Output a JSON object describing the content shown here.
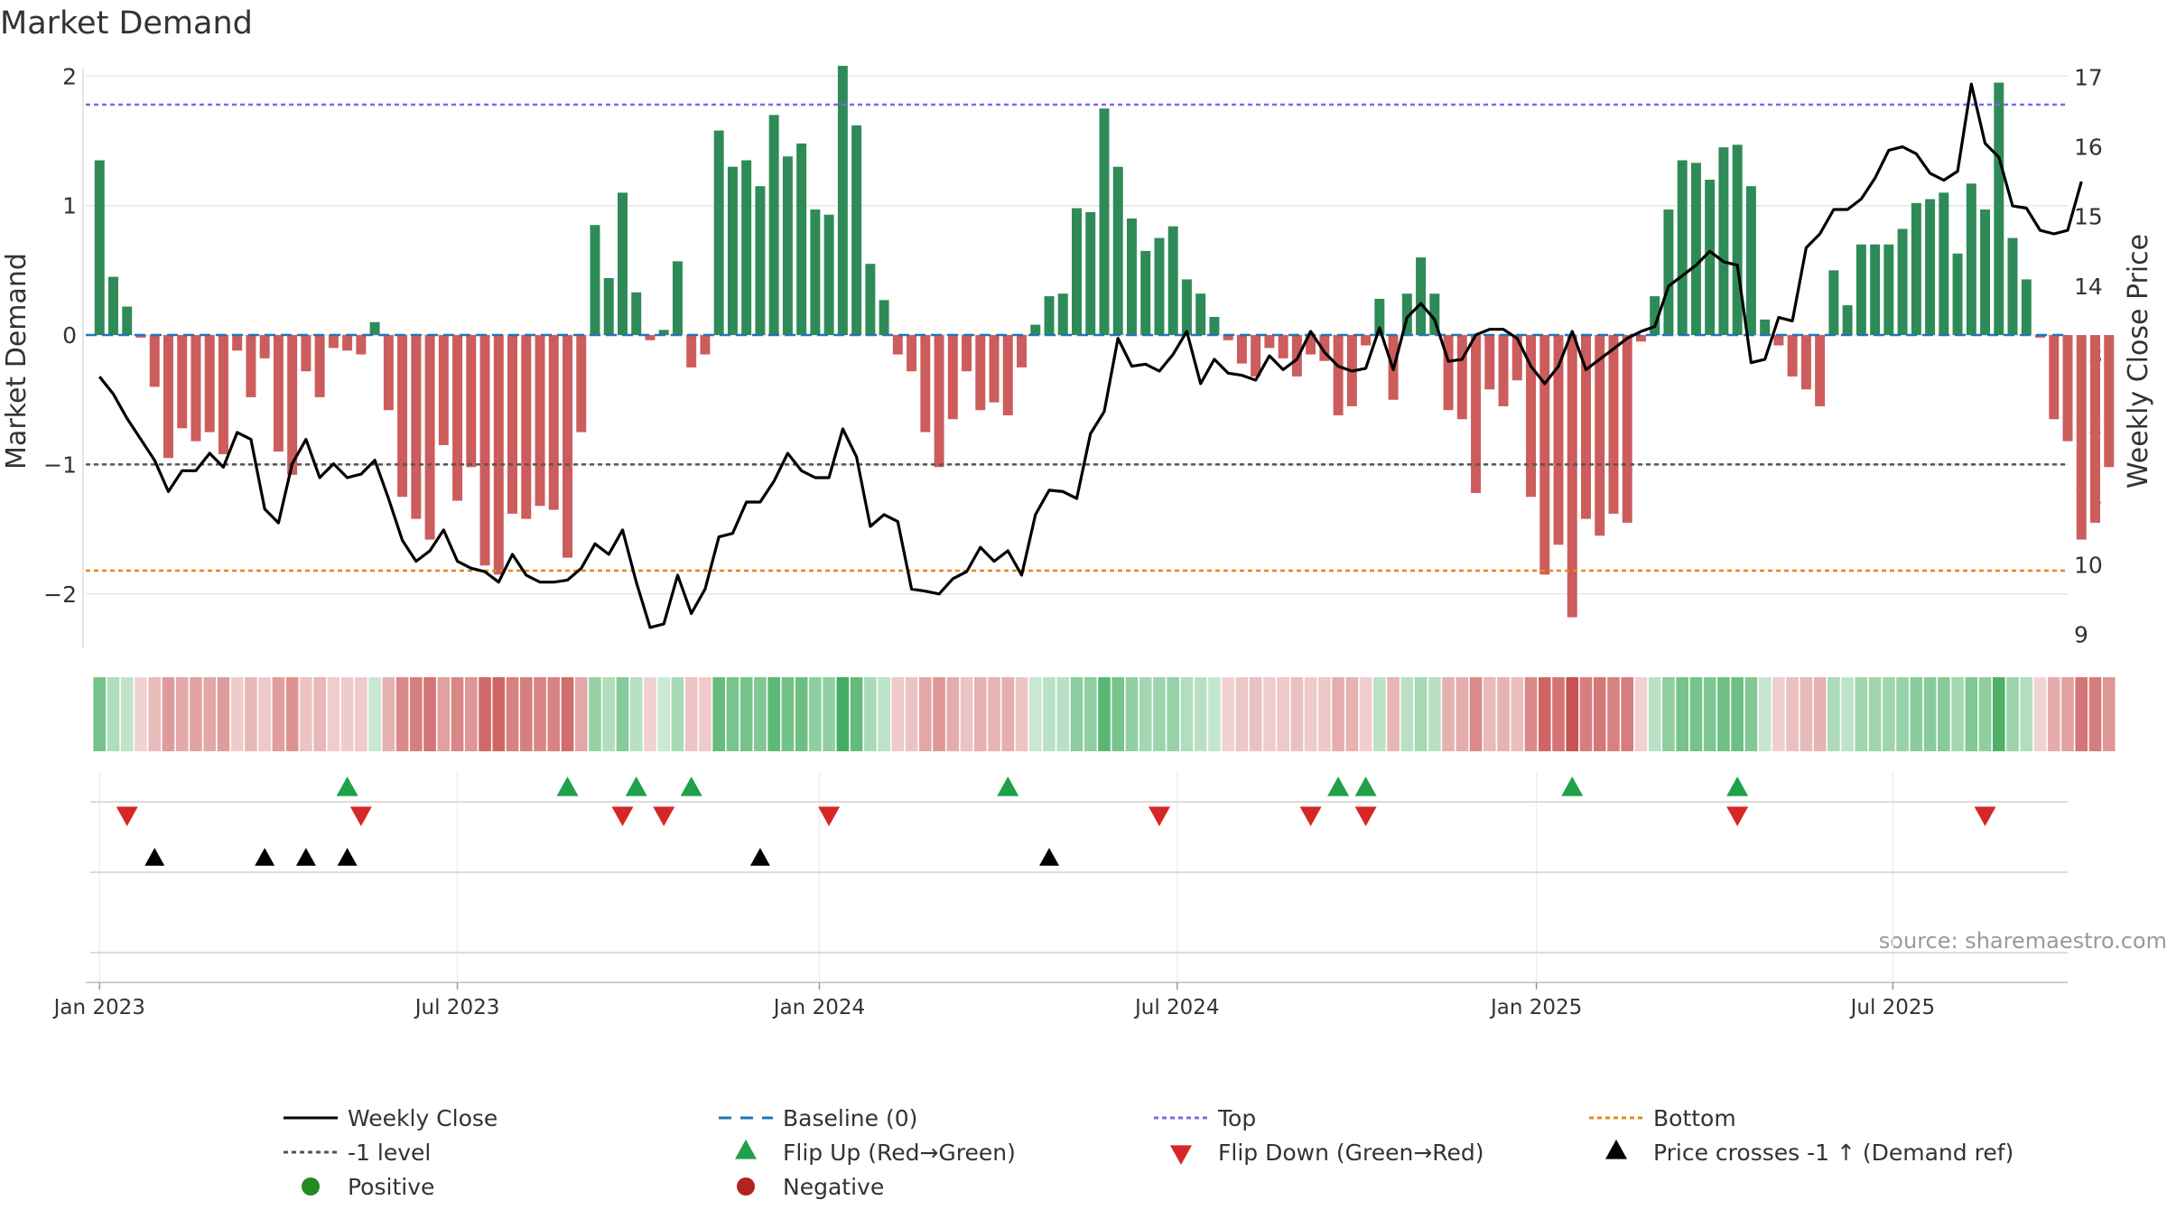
{
  "title": "Market Demand",
  "source": "source: sharemaestro.com",
  "colors": {
    "positive": "#2e8b57",
    "negative": "#cd5c5c",
    "close": "#000000",
    "baseline": "#1f77b4",
    "top": "#7b68ee",
    "bottom": "#e08a1e",
    "minus_one": "#555555",
    "flip_up": "#21a04a",
    "flip_down": "#d62728",
    "cross": "#000000",
    "grid": "#e6e6e6"
  },
  "chart_data": {
    "type": "bar",
    "title": "Market Demand",
    "ylabel": "Market Demand",
    "y2label": "Weekly Close Price",
    "ylim": [
      -2.42,
      2.1
    ],
    "y2lim": [
      8.8,
      17.2
    ],
    "yticks": [
      {
        "v": 2,
        "label": "2"
      },
      {
        "v": 1,
        "label": "1"
      },
      {
        "v": 0,
        "label": "0"
      },
      {
        "v": -1,
        "label": "−1"
      },
      {
        "v": -2,
        "label": "−2"
      }
    ],
    "y2ticks": [
      9,
      10,
      11,
      12,
      13,
      14,
      15,
      16,
      17
    ],
    "top_level": 1.78,
    "bottom_level": -1.82,
    "minus_one_level": -1,
    "x_start_week": -1,
    "x_end_week": 143,
    "xticks": [
      {
        "week": 0,
        "label": "Jan 2023"
      },
      {
        "week": 26,
        "label": "Jul 2023"
      },
      {
        "week": 52.3,
        "label": "Jan 2024"
      },
      {
        "week": 78.3,
        "label": "Jul 2024"
      },
      {
        "week": 104.4,
        "label": "Jan 2025"
      },
      {
        "week": 130.3,
        "label": "Jul 2025"
      }
    ],
    "demand": [
      1.35,
      0.45,
      0.22,
      -0.02,
      -0.4,
      -0.95,
      -0.72,
      -0.82,
      -0.75,
      -0.92,
      -0.12,
      -0.48,
      -0.18,
      -0.9,
      -1.08,
      -0.28,
      -0.48,
      -0.1,
      -0.12,
      -0.15,
      0.1,
      -0.58,
      -1.25,
      -1.42,
      -1.58,
      -0.85,
      -1.28,
      -1.02,
      -1.78,
      -1.85,
      -1.38,
      -1.42,
      -1.32,
      -1.35,
      -1.72,
      -0.75,
      0.85,
      0.44,
      1.1,
      0.33,
      -0.04,
      0.04,
      0.57,
      -0.25,
      -0.15,
      1.58,
      1.3,
      1.35,
      1.15,
      1.7,
      1.38,
      1.48,
      0.97,
      0.93,
      2.08,
      1.62,
      0.55,
      0.27,
      -0.15,
      -0.28,
      -0.75,
      -1.02,
      -0.65,
      -0.28,
      -0.58,
      -0.52,
      -0.62,
      -0.25,
      0.08,
      0.3,
      0.32,
      0.98,
      0.95,
      1.75,
      1.3,
      0.9,
      0.65,
      0.75,
      0.84,
      0.43,
      0.32,
      0.14,
      -0.04,
      -0.22,
      -0.32,
      -0.1,
      -0.18,
      -0.32,
      -0.15,
      -0.2,
      -0.62,
      -0.55,
      -0.08,
      0.28,
      -0.5,
      0.32,
      0.6,
      0.32,
      -0.58,
      -0.65,
      -1.22,
      -0.42,
      -0.55,
      -0.35,
      -1.25,
      -1.85,
      -1.62,
      -2.18,
      -1.42,
      -1.55,
      -1.38,
      -1.45,
      -0.05,
      0.3,
      0.97,
      1.35,
      1.33,
      1.2,
      1.45,
      1.47,
      1.15,
      0.12,
      -0.08,
      -0.32,
      -0.42,
      -0.55,
      0.5,
      0.23,
      0.7,
      0.7,
      0.7,
      0.82,
      1.02,
      1.05,
      1.1,
      0.63,
      1.17,
      0.97,
      1.95,
      0.75,
      0.43,
      -0.02,
      -0.65,
      -0.82,
      -1.58,
      -1.45,
      -1.02
    ],
    "close": [
      12.7,
      12.45,
      12.1,
      11.8,
      11.5,
      11.05,
      11.35,
      11.35,
      11.6,
      11.4,
      11.9,
      11.8,
      10.8,
      10.6,
      11.45,
      11.8,
      11.25,
      11.45,
      11.25,
      11.3,
      11.5,
      10.95,
      10.35,
      10.05,
      10.2,
      10.5,
      10.05,
      9.95,
      9.9,
      9.75,
      10.15,
      9.85,
      9.75,
      9.75,
      9.78,
      9.95,
      10.3,
      10.15,
      10.5,
      9.75,
      9.1,
      9.15,
      9.85,
      9.3,
      9.65,
      10.4,
      10.45,
      10.9,
      10.9,
      11.2,
      11.6,
      11.35,
      11.25,
      11.25,
      11.95,
      11.55,
      10.55,
      10.72,
      10.62,
      9.65,
      9.62,
      9.58,
      9.8,
      9.9,
      10.25,
      10.05,
      10.2,
      9.85,
      10.72,
      11.07,
      11.05,
      10.95,
      11.88,
      12.2,
      13.25,
      12.85,
      12.88,
      12.78,
      13.02,
      13.35,
      12.6,
      12.95,
      12.75,
      12.72,
      12.65,
      13.0,
      12.8,
      12.95,
      13.35,
      13.05,
      12.85,
      12.78,
      12.82,
      13.4,
      12.8,
      13.55,
      13.75,
      13.52,
      12.92,
      12.95,
      13.3,
      13.38,
      13.38,
      13.25,
      12.85,
      12.6,
      12.85,
      13.35,
      12.8,
      12.95,
      13.1,
      13.25,
      13.35,
      13.42,
      14.0,
      14.15,
      14.3,
      14.5,
      14.35,
      14.3,
      12.9,
      12.95,
      13.55,
      13.5,
      14.55,
      14.75,
      15.1,
      15.1,
      15.25,
      15.55,
      15.95,
      16.0,
      15.9,
      15.62,
      15.52,
      15.65,
      16.9,
      16.05,
      15.85,
      15.15,
      15.12,
      14.8,
      14.75,
      14.8,
      15.5
    ],
    "flip_up_weeks": [
      18,
      34,
      39,
      43,
      66,
      90,
      92,
      107,
      119
    ],
    "flip_down_weeks": [
      2,
      19,
      38,
      41,
      53,
      77,
      88,
      92,
      119,
      137
    ],
    "cross_weeks": [
      4,
      12,
      15,
      18,
      48,
      69
    ],
    "heatmap_labels": [],
    "series": [
      {
        "name": "Weekly Close",
        "type": "line",
        "axis": "right"
      },
      {
        "name": "Market Demand",
        "type": "bar",
        "axis": "left"
      }
    ]
  },
  "legend": [
    {
      "key": "weekly_close",
      "label": "Weekly Close",
      "marker": "line-solid-black"
    },
    {
      "key": "baseline",
      "label": "Baseline (0)",
      "marker": "line-dashed-blue"
    },
    {
      "key": "top",
      "label": "Top",
      "marker": "line-dotted-purple"
    },
    {
      "key": "bottom",
      "label": "Bottom",
      "marker": "line-dotted-orange"
    },
    {
      "key": "minus_one",
      "label": "-1 level",
      "marker": "line-dotted-grey"
    },
    {
      "key": "flip_up",
      "label": "Flip Up (Red→Green)",
      "marker": "triangle-up-green"
    },
    {
      "key": "flip_down",
      "label": "Flip Down (Green→Red)",
      "marker": "triangle-down-red"
    },
    {
      "key": "cross",
      "label": "Price crosses -1 ↑ (Demand ref)",
      "marker": "triangle-up-black"
    },
    {
      "key": "positive",
      "label": "Positive",
      "marker": "circle-green"
    },
    {
      "key": "negative",
      "label": "Negative",
      "marker": "circle-red"
    }
  ]
}
